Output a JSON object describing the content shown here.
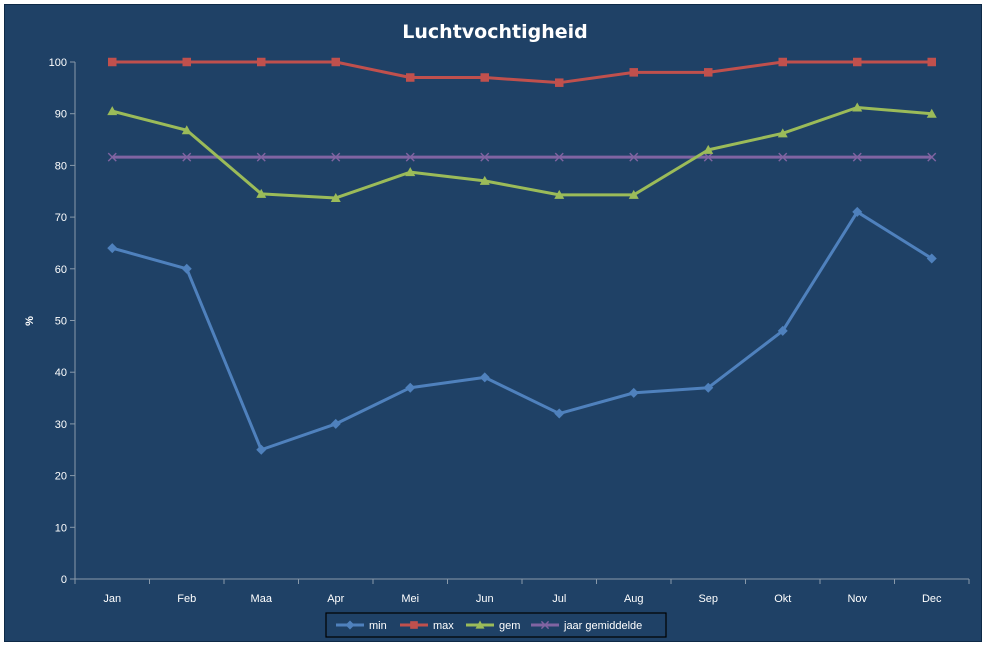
{
  "chart_data": {
    "type": "line",
    "title": "Luchtvochtigheid",
    "xlabel": "",
    "ylabel": "%",
    "ylim": [
      0,
      100
    ],
    "yticks": [
      "0",
      "10",
      "20",
      "30",
      "40",
      "50",
      "60",
      "70",
      "80",
      "90",
      "100"
    ],
    "categories": [
      "Jan",
      "Feb",
      "Maa",
      "Apr",
      "Mei",
      "Jun",
      "Jul",
      "Aug",
      "Sep",
      "Okt",
      "Nov",
      "Dec"
    ],
    "grid": false,
    "legend_position": "bottom",
    "series": [
      {
        "name": "min",
        "color": "#4f81bd",
        "marker": "diamond",
        "values": [
          64,
          60,
          25,
          30,
          37,
          39,
          32,
          36,
          37,
          48,
          71,
          62
        ]
      },
      {
        "name": "max",
        "color": "#c0504d",
        "marker": "square",
        "values": [
          100,
          100,
          100,
          100,
          97,
          97,
          96,
          98,
          98,
          100,
          100,
          100
        ]
      },
      {
        "name": "gem",
        "color": "#9bbb59",
        "marker": "triangle",
        "values": [
          90.5,
          86.8,
          74.5,
          73.7,
          78.7,
          77,
          74.3,
          74.3,
          83,
          86.2,
          91.2,
          90
        ]
      },
      {
        "name": "jaar gemiddelde",
        "color": "#8064a2",
        "marker": "x",
        "values": [
          81.6,
          81.6,
          81.6,
          81.6,
          81.6,
          81.6,
          81.6,
          81.6,
          81.6,
          81.6,
          81.6,
          81.6
        ]
      }
    ]
  }
}
